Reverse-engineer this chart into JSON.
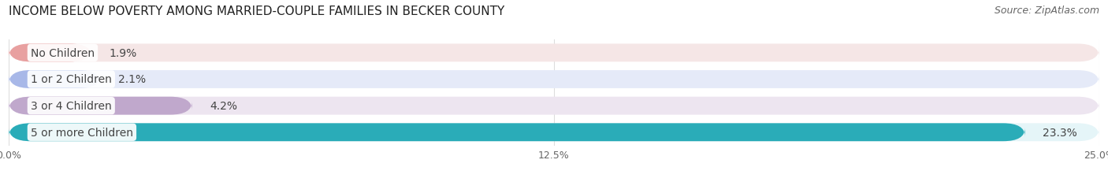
{
  "title": "INCOME BELOW POVERTY AMONG MARRIED-COUPLE FAMILIES IN BECKER COUNTY",
  "source": "Source: ZipAtlas.com",
  "categories": [
    "No Children",
    "1 or 2 Children",
    "3 or 4 Children",
    "5 or more Children"
  ],
  "values": [
    1.9,
    2.1,
    4.2,
    23.3
  ],
  "labels": [
    "1.9%",
    "2.1%",
    "4.2%",
    "23.3%"
  ],
  "bar_colors": [
    "#e8a0a0",
    "#a8b8e8",
    "#c0a8cc",
    "#2aacb8"
  ],
  "bar_bg_colors": [
    "#f5e6e6",
    "#e5eaf8",
    "#ede5f0",
    "#e5f5f8"
  ],
  "xlim": [
    0,
    25.0
  ],
  "xticks": [
    0.0,
    12.5,
    25.0
  ],
  "xticklabels": [
    "0.0%",
    "12.5%",
    "25.0%"
  ],
  "title_fontsize": 11,
  "source_fontsize": 9,
  "label_fontsize": 10,
  "category_fontsize": 10,
  "background_color": "#ffffff",
  "grid_color": "#dddddd"
}
